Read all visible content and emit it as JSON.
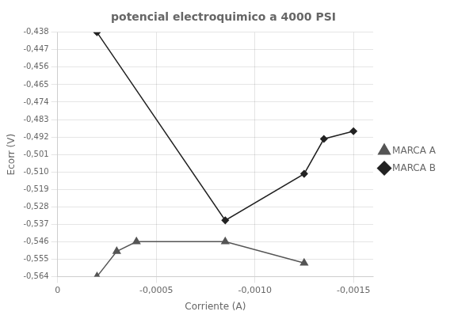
{
  "chart_data": {
    "type": "line",
    "title": "potencial electroquimico a 4000 PSI",
    "x_label": "Corriente (A)",
    "y_label": "Ecorr (V)",
    "series": [
      {
        "name": "MARCA A",
        "color": "#555555",
        "marker": "triangle",
        "x": [
          -0.0002,
          -0.0003,
          -0.0004,
          -0.00085,
          -0.00125
        ],
        "values": [
          -0.564,
          -0.551,
          -0.546,
          -0.546,
          -0.557
        ]
      },
      {
        "name": "MARCA B",
        "color": "#222222",
        "marker": "diamond",
        "x": [
          -0.0002,
          -0.00085,
          -0.00125,
          -0.00135,
          -0.0015
        ],
        "values": [
          -0.438,
          -0.535,
          -0.511,
          -0.493,
          -0.489
        ]
      }
    ],
    "xlim": [
      0,
      -0.0016
    ],
    "xticks": [
      0,
      {
        "value": -0.0005,
        "label": "-0,0005"
      },
      {
        "value": -0.001,
        "label": "-0,0010"
      },
      {
        "value": -0.0015,
        "label": "-0,0015"
      }
    ],
    "ylim": [
      -0.564,
      -0.438
    ],
    "yticks": [
      {
        "value": -0.564,
        "label": "-0,564"
      },
      {
        "value": -0.555,
        "label": "-0,555"
      },
      {
        "value": -0.546,
        "label": "-0,546"
      },
      {
        "value": -0.537,
        "label": "-0,537"
      },
      {
        "value": -0.528,
        "label": "-0,528"
      },
      {
        "value": -0.519,
        "label": "-0,519"
      },
      {
        "value": -0.51,
        "label": "-0,510"
      },
      {
        "value": -0.501,
        "label": "-0,501"
      },
      {
        "value": -0.492,
        "label": "-0,492"
      },
      {
        "value": -0.483,
        "label": "-0,483"
      },
      {
        "value": -0.474,
        "label": "-0,474"
      },
      {
        "value": -0.465,
        "label": "-0,465"
      },
      {
        "value": -0.456,
        "label": "-0,456"
      },
      {
        "value": -0.447,
        "label": "-0,447"
      },
      {
        "value": -0.438,
        "label": "-0,438"
      }
    ],
    "grid": true,
    "legend": "right"
  }
}
